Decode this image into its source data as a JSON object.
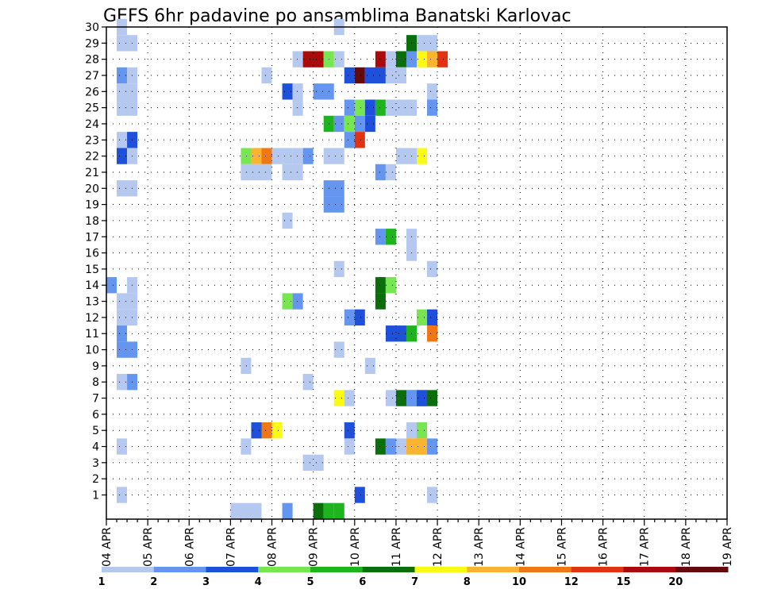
{
  "chart_data": {
    "type": "heatmap",
    "title": "GEFS 6hr padavine po ansamblima Banatski Karlovac",
    "x_tick_labels": [
      "04 APR",
      "05 APR",
      "06 APR",
      "07 APR",
      "08 APR",
      "09 APR",
      "10 APR",
      "11 APR",
      "12 APR",
      "13 APR",
      "14 APR",
      "15 APR",
      "16 APR",
      "17 APR",
      "18 APR",
      "19 APR"
    ],
    "y_tick_labels": [
      "1",
      "2",
      "3",
      "4",
      "5",
      "6",
      "7",
      "8",
      "9",
      "10",
      "11",
      "12",
      "13",
      "14",
      "15",
      "16",
      "17",
      "18",
      "19",
      "20",
      "21",
      "22",
      "23",
      "24",
      "25",
      "26",
      "27",
      "28",
      "29",
      "30"
    ],
    "x_range_days": [
      0,
      15
    ],
    "y_range_members": [
      0,
      30
    ],
    "time_step_hours": 6,
    "grid": "dotted",
    "legend": {
      "placement": "bottom",
      "labels": [
        "1",
        "2",
        "3",
        "4",
        "5",
        "6",
        "7",
        "8",
        "10",
        "12",
        "15",
        "20"
      ],
      "colors": [
        "#b4c8f0",
        "#6496f0",
        "#1e50dc",
        "#78e650",
        "#1eb41e",
        "#0a6e0a",
        "#fafa14",
        "#fab432",
        "#f07814",
        "#e13214",
        "#aa0a0a",
        "#640a0a"
      ]
    },
    "cells_note": "each cell: [member, first 6h step index from 04 APR 00Z, number of steps, color class 1-12]",
    "cells": [
      [
        30,
        1,
        1,
        1
      ],
      [
        30,
        22,
        1,
        1
      ],
      [
        29,
        1,
        2,
        1
      ],
      [
        29,
        29,
        1,
        6
      ],
      [
        29,
        30,
        2,
        1
      ],
      [
        28,
        18,
        1,
        1
      ],
      [
        28,
        19,
        2,
        11
      ],
      [
        28,
        21,
        1,
        4
      ],
      [
        28,
        22,
        1,
        1
      ],
      [
        28,
        26,
        1,
        11
      ],
      [
        28,
        27,
        1,
        1
      ],
      [
        28,
        28,
        1,
        6
      ],
      [
        28,
        29,
        1,
        2
      ],
      [
        28,
        30,
        1,
        7
      ],
      [
        28,
        31,
        1,
        8
      ],
      [
        28,
        32,
        1,
        10
      ],
      [
        27,
        1,
        1,
        2
      ],
      [
        27,
        2,
        1,
        1
      ],
      [
        27,
        15,
        1,
        1
      ],
      [
        27,
        23,
        1,
        3
      ],
      [
        27,
        24,
        1,
        12
      ],
      [
        27,
        25,
        2,
        3
      ],
      [
        27,
        27,
        2,
        1
      ],
      [
        26,
        1,
        2,
        1
      ],
      [
        26,
        17,
        1,
        3
      ],
      [
        26,
        18,
        1,
        1
      ],
      [
        26,
        20,
        2,
        2
      ],
      [
        26,
        31,
        1,
        1
      ],
      [
        25,
        1,
        2,
        1
      ],
      [
        25,
        18,
        1,
        1
      ],
      [
        25,
        23,
        1,
        2
      ],
      [
        25,
        24,
        1,
        4
      ],
      [
        25,
        25,
        1,
        3
      ],
      [
        25,
        26,
        1,
        5
      ],
      [
        25,
        27,
        1,
        1
      ],
      [
        25,
        28,
        2,
        1
      ],
      [
        25,
        31,
        1,
        2
      ],
      [
        24,
        21,
        1,
        5
      ],
      [
        24,
        22,
        1,
        2
      ],
      [
        24,
        23,
        1,
        4
      ],
      [
        24,
        24,
        1,
        2
      ],
      [
        24,
        25,
        1,
        3
      ],
      [
        23,
        1,
        1,
        1
      ],
      [
        23,
        2,
        1,
        3
      ],
      [
        23,
        23,
        1,
        2
      ],
      [
        23,
        24,
        1,
        10
      ],
      [
        22,
        1,
        1,
        3
      ],
      [
        22,
        2,
        1,
        1
      ],
      [
        22,
        13,
        1,
        4
      ],
      [
        22,
        14,
        1,
        8
      ],
      [
        22,
        15,
        1,
        9
      ],
      [
        22,
        16,
        1,
        1
      ],
      [
        22,
        17,
        1,
        1
      ],
      [
        22,
        18,
        1,
        1
      ],
      [
        22,
        19,
        1,
        2
      ],
      [
        22,
        21,
        2,
        1
      ],
      [
        22,
        28,
        2,
        1
      ],
      [
        22,
        30,
        1,
        7
      ],
      [
        21,
        13,
        1,
        1
      ],
      [
        21,
        14,
        2,
        1
      ],
      [
        21,
        17,
        2,
        1
      ],
      [
        21,
        26,
        1,
        2
      ],
      [
        21,
        27,
        1,
        1
      ],
      [
        20,
        1,
        2,
        1
      ],
      [
        20,
        21,
        2,
        2
      ],
      [
        19,
        21,
        2,
        2
      ],
      [
        18,
        17,
        1,
        1
      ],
      [
        17,
        26,
        1,
        2
      ],
      [
        17,
        27,
        1,
        5
      ],
      [
        17,
        29,
        1,
        1
      ],
      [
        16,
        29,
        1,
        1
      ],
      [
        15,
        22,
        1,
        1
      ],
      [
        15,
        31,
        1,
        1
      ],
      [
        14,
        0,
        1,
        2
      ],
      [
        14,
        2,
        1,
        1
      ],
      [
        14,
        26,
        1,
        6
      ],
      [
        14,
        27,
        1,
        4
      ],
      [
        13,
        1,
        2,
        1
      ],
      [
        13,
        17,
        1,
        4
      ],
      [
        13,
        18,
        1,
        2
      ],
      [
        13,
        26,
        1,
        6
      ],
      [
        12,
        1,
        2,
        1
      ],
      [
        12,
        23,
        1,
        2
      ],
      [
        12,
        24,
        1,
        3
      ],
      [
        12,
        30,
        1,
        4
      ],
      [
        12,
        31,
        1,
        3
      ],
      [
        11,
        1,
        1,
        2
      ],
      [
        11,
        27,
        2,
        3
      ],
      [
        11,
        29,
        1,
        5
      ],
      [
        11,
        31,
        1,
        9
      ],
      [
        10,
        1,
        2,
        2
      ],
      [
        10,
        22,
        1,
        1
      ],
      [
        9,
        13,
        1,
        1
      ],
      [
        9,
        25,
        1,
        1
      ],
      [
        8,
        1,
        1,
        1
      ],
      [
        8,
        2,
        1,
        2
      ],
      [
        8,
        19,
        1,
        1
      ],
      [
        7,
        22,
        1,
        7
      ],
      [
        7,
        23,
        1,
        1
      ],
      [
        7,
        27,
        1,
        1
      ],
      [
        7,
        28,
        3,
        6
      ],
      [
        7,
        29,
        1,
        2
      ],
      [
        7,
        30,
        1,
        3
      ],
      [
        7,
        31,
        1,
        6
      ],
      [
        5,
        14,
        1,
        3
      ],
      [
        5,
        15,
        1,
        9
      ],
      [
        5,
        16,
        1,
        7
      ],
      [
        5,
        23,
        1,
        3
      ],
      [
        5,
        29,
        1,
        1
      ],
      [
        5,
        30,
        1,
        4
      ],
      [
        4,
        1,
        1,
        1
      ],
      [
        4,
        13,
        1,
        1
      ],
      [
        4,
        23,
        1,
        1
      ],
      [
        4,
        26,
        1,
        6
      ],
      [
        4,
        27,
        1,
        2
      ],
      [
        4,
        28,
        1,
        1
      ],
      [
        4,
        29,
        2,
        8
      ],
      [
        4,
        30,
        1,
        8
      ],
      [
        4,
        31,
        1,
        2
      ],
      [
        3,
        19,
        1,
        1
      ],
      [
        3,
        20,
        1,
        1
      ],
      [
        1,
        1,
        1,
        1
      ],
      [
        1,
        24,
        1,
        3
      ],
      [
        1,
        31,
        1,
        1
      ],
      [
        0,
        12,
        2,
        1
      ],
      [
        0,
        14,
        1,
        1
      ],
      [
        0,
        17,
        1,
        2
      ],
      [
        0,
        20,
        1,
        6
      ],
      [
        0,
        21,
        1,
        5
      ],
      [
        0,
        22,
        1,
        5
      ]
    ]
  }
}
